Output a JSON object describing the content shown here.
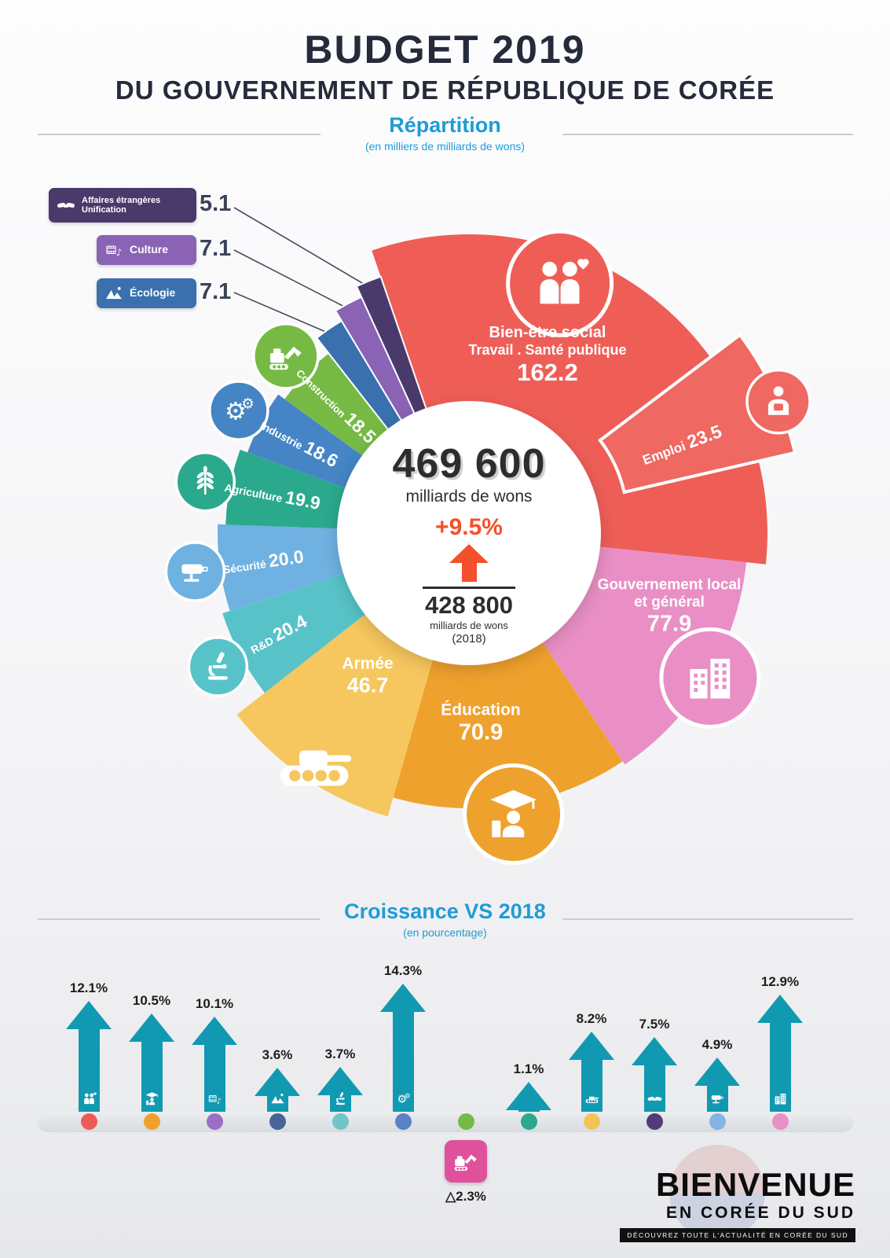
{
  "header": {
    "title": "BUDGET 2019",
    "subtitle": "DU GOUVERNEMENT DE RÉPUBLIQUE DE CORÉE"
  },
  "repartition": {
    "title": "Répartition",
    "unit": "(en milliers de milliards de wons)"
  },
  "croissance": {
    "title": "Croissance VS 2018",
    "unit": "(en pourcentage)"
  },
  "center": {
    "total": "469 600",
    "total_unit": "milliards de wons",
    "growth": "+9.5%",
    "previous": "428 800",
    "previous_unit": "milliards de wons",
    "previous_year": "(2018)"
  },
  "chart_data": [
    {
      "type": "pie",
      "title": "Répartition",
      "unit": "milliers de milliards de wons",
      "total_label": "469 600 milliards de wons",
      "previous_total_label": "428 800 milliards de wons (2018)",
      "growth_vs_2018": "+9.5%",
      "slices": [
        {
          "key": "bien-etre-social",
          "lines": [
            "Bien-être social",
            "Travail . Santé publique"
          ],
          "label": "Bien-être social Travail . Santé publique",
          "value": 162.2,
          "display": "162.2",
          "color": "#ee5e57",
          "icon": "family-icon"
        },
        {
          "key": "emploi",
          "lines": [
            "Emploi"
          ],
          "label": "Emploi",
          "value": 23.5,
          "display": "23.5",
          "color": "#ef6862",
          "icon": "worker-icon"
        },
        {
          "key": "gouvernement-local",
          "lines": [
            "Gouvernement local",
            "et général"
          ],
          "label": "Gouvernement local et général",
          "value": 77.9,
          "display": "77.9",
          "color": "#e98fc5",
          "icon": "buildings-icon"
        },
        {
          "key": "education",
          "lines": [
            "Éducation"
          ],
          "label": "Éducation",
          "value": 70.9,
          "display": "70.9",
          "color": "#efa12d",
          "icon": "graduate-icon"
        },
        {
          "key": "armee",
          "lines": [
            "Armée"
          ],
          "label": "Armée",
          "value": 46.7,
          "display": "46.7",
          "color": "#f6c75e",
          "icon": "tank-icon"
        },
        {
          "key": "rd",
          "lines": [
            "R&D"
          ],
          "label": "R&D",
          "value": 20.4,
          "display": "20.4",
          "color": "#57c3c9",
          "icon": "microscope-icon"
        },
        {
          "key": "securite",
          "lines": [
            "Sécurité"
          ],
          "label": "Sécurité",
          "value": 20.0,
          "display": "20.0",
          "color": "#6fb1e0",
          "icon": "cctv-icon"
        },
        {
          "key": "agriculture",
          "lines": [
            "Agriculture"
          ],
          "label": "Agriculture",
          "value": 19.9,
          "display": "19.9",
          "color": "#2aa98d",
          "icon": "wheat-icon"
        },
        {
          "key": "industrie",
          "lines": [
            "Industrie"
          ],
          "label": "Industrie",
          "value": 18.6,
          "display": "18.6",
          "color": "#4585c5",
          "icon": "gears-icon"
        },
        {
          "key": "construction",
          "lines": [
            "Construction"
          ],
          "label": "Construction",
          "value": 18.5,
          "display": "18.5",
          "color": "#76ba45",
          "icon": "excavator-icon"
        },
        {
          "key": "ecologie",
          "lines": [
            "Écologie"
          ],
          "label": "Écologie",
          "value": 7.1,
          "display": "7.1",
          "color": "#3a70ae",
          "icon": "mountain-icon"
        },
        {
          "key": "culture",
          "lines": [
            "Culture"
          ],
          "label": "Culture",
          "value": 7.1,
          "display": "7.1",
          "color": "#8a63b5",
          "icon": "culture-icon"
        },
        {
          "key": "affaires-etrangeres",
          "lines": [
            "Affaires étrangères",
            "Unification"
          ],
          "label": "Affaires étrangères Unification",
          "value": 5.1,
          "display": "5.1",
          "color": "#4a3a6b",
          "icon": "handshake-icon"
        }
      ]
    },
    {
      "type": "bar",
      "title": "Croissance VS 2018",
      "unit": "en pourcentage",
      "ylim": [
        -3,
        15
      ],
      "categories": [
        "Bien-être social",
        "Éducation",
        "Culture",
        "Écologie",
        "R&D",
        "Industrie",
        "Construction",
        "Agriculture",
        "Armée",
        "Affaires étrangères",
        "Sécurité",
        "Gouvernement local"
      ],
      "keys": [
        "bien-etre-social",
        "education",
        "culture",
        "ecologie",
        "rd",
        "industrie",
        "construction",
        "agriculture",
        "armee",
        "affaires-etrangeres",
        "securite",
        "gouvernement-local"
      ],
      "values": [
        12.1,
        10.5,
        10.1,
        3.6,
        3.7,
        14.3,
        -2.3,
        1.1,
        8.2,
        7.5,
        4.9,
        12.9
      ],
      "labels": [
        "12.1%",
        "10.5%",
        "10.1%",
        "3.6%",
        "3.7%",
        "14.3%",
        "△2.3%",
        "1.1%",
        "8.2%",
        "7.5%",
        "4.9%",
        "12.9%"
      ],
      "dot_colors": [
        "#ee5b57",
        "#f0a12d",
        "#9a6fc4",
        "#47639a",
        "#6fc5c8",
        "#5b82c4",
        "#76ba45",
        "#2aa98d",
        "#f2c455",
        "#523c78",
        "#82b4e4",
        "#e891c6"
      ],
      "icons": [
        "family-icon",
        "graduate-icon",
        "culture-icon",
        "mountain-icon",
        "microscope-icon",
        "gears-icon",
        "excavator-icon",
        "wheat-icon",
        "tank-icon",
        "handshake-icon",
        "cctv-icon",
        "buildings-icon"
      ],
      "arrow_color": "#1299b2",
      "negative_box_color": "#e0519c"
    }
  ],
  "logo": {
    "line1": "BIENVENUE",
    "line2": "EN CORÉE DU SUD",
    "tagline": "DÉCOUVREZ TOUTE L'ACTUALITÉ EN CORÉE DU SUD"
  }
}
